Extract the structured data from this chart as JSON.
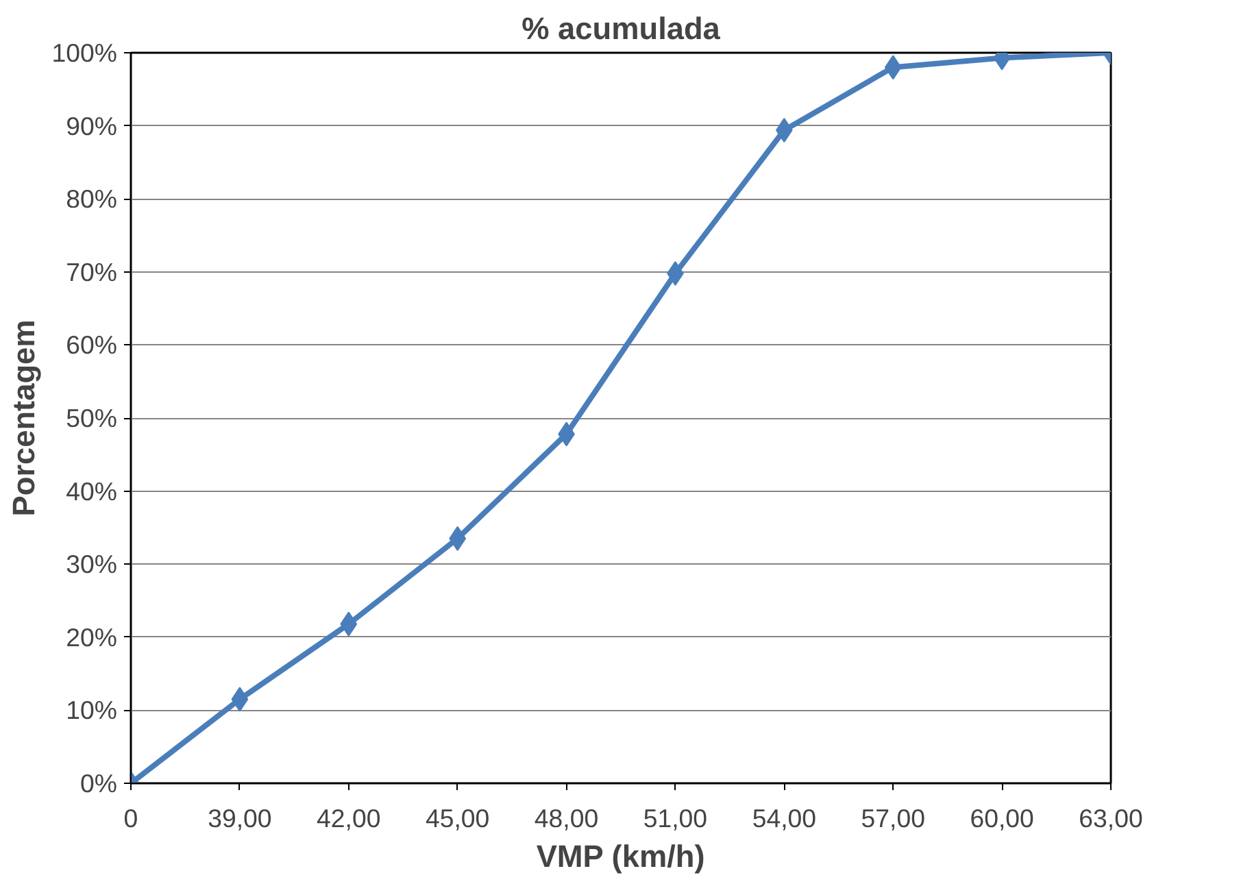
{
  "chart_data": {
    "type": "line",
    "title": "% acumulada",
    "xlabel": "VMP (km/h)",
    "ylabel": "Porcentagem",
    "categories": [
      "0",
      "39,00",
      "42,00",
      "45,00",
      "48,00",
      "51,00",
      "54,00",
      "57,00",
      "60,00",
      "63,00"
    ],
    "series": [
      {
        "color": "#4a7ebb",
        "values": [
          0,
          11.5,
          21.8,
          33.5,
          47.8,
          69.8,
          89.4,
          98.0,
          99.3,
          100
        ]
      }
    ],
    "ylim": [
      0,
      100
    ],
    "yticks": [
      {
        "value": 0,
        "label": "0%"
      },
      {
        "value": 10,
        "label": "10%"
      },
      {
        "value": 20,
        "label": "20%"
      },
      {
        "value": 30,
        "label": "30%"
      },
      {
        "value": 40,
        "label": "40%"
      },
      {
        "value": 50,
        "label": "50%"
      },
      {
        "value": 60,
        "label": "60%"
      },
      {
        "value": 70,
        "label": "70%"
      },
      {
        "value": 80,
        "label": "80%"
      },
      {
        "value": 90,
        "label": "90%"
      },
      {
        "value": 100,
        "label": "100%"
      }
    ],
    "grid": "y",
    "marker": "diamond",
    "line_style": "solid"
  }
}
